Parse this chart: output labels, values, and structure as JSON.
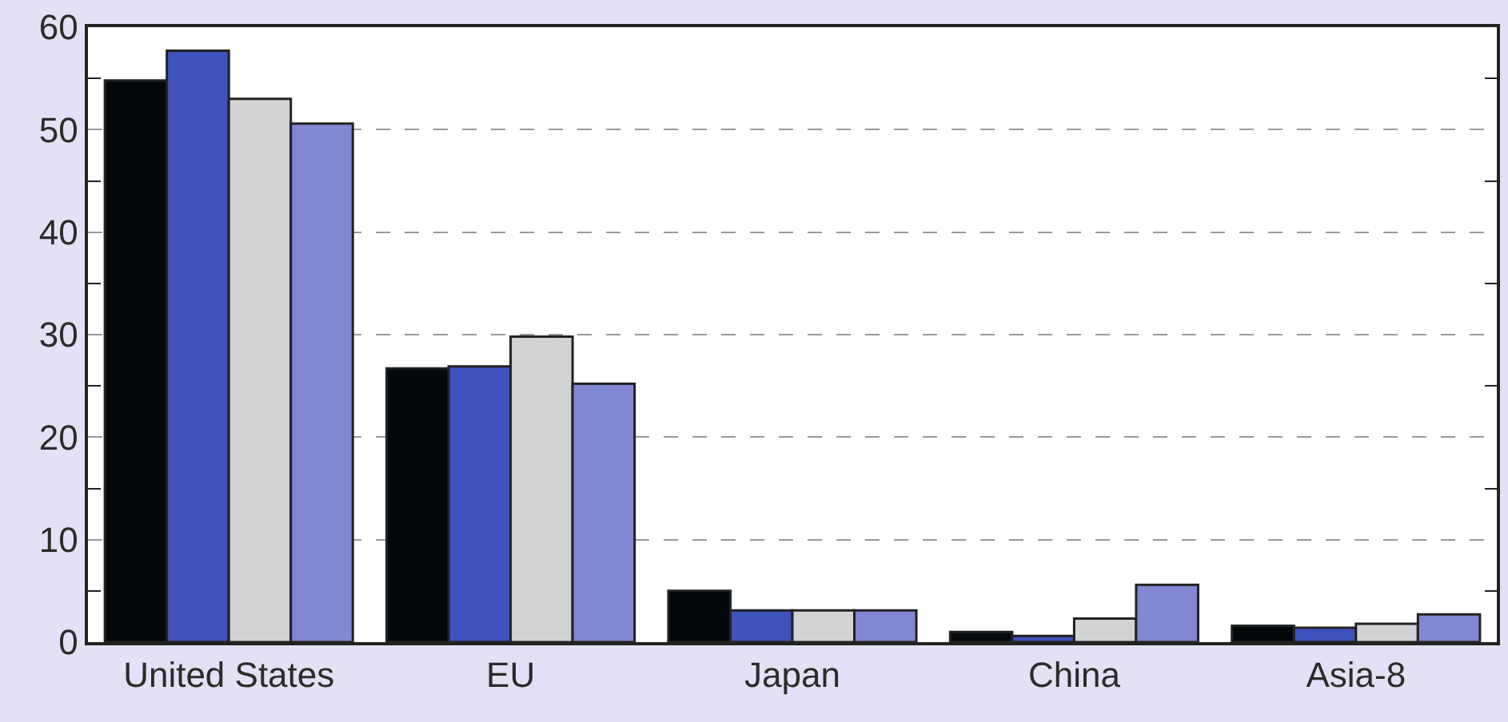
{
  "chart_data": {
    "type": "bar",
    "categories": [
      "United States",
      "EU",
      "Japan",
      "China",
      "Asia-8"
    ],
    "series": [
      {
        "color": "#05080a",
        "values": [
          54.8,
          26.7,
          5.0,
          1.0,
          1.6
        ]
      },
      {
        "color": "#3d52bb",
        "values": [
          57.7,
          26.9,
          3.1,
          0.6,
          1.4
        ]
      },
      {
        "color": "#d2d3d5",
        "values": [
          53.0,
          29.8,
          3.1,
          2.3,
          1.8
        ]
      },
      {
        "color": "#8287d3",
        "values": [
          50.6,
          25.2,
          3.1,
          5.6,
          2.7
        ]
      }
    ],
    "ylim": [
      0,
      60
    ],
    "yticks": [
      0,
      {
        "value": 5,
        "label": null
      },
      10,
      {
        "value": 15,
        "label": null
      },
      20,
      {
        "value": 25,
        "label": null
      },
      30,
      {
        "value": 35,
        "label": null
      },
      40,
      {
        "value": 45,
        "label": null
      },
      50,
      {
        "value": 55,
        "label": null
      },
      60
    ],
    "grid": "y"
  }
}
